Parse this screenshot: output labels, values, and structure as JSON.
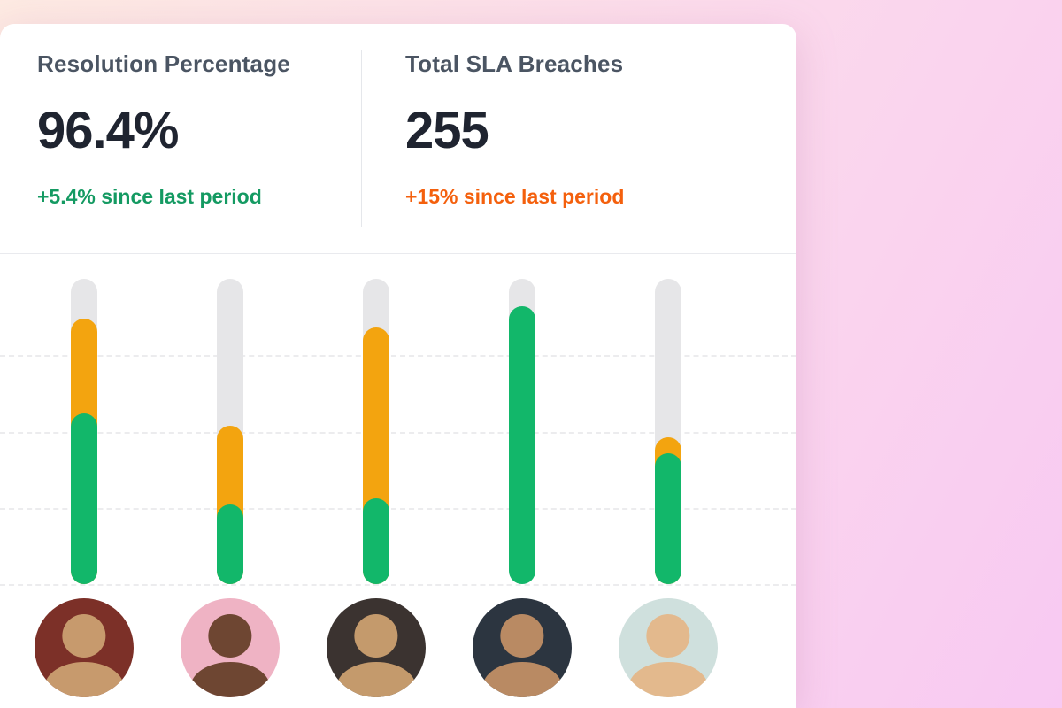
{
  "theme": {
    "background_start": "#fdeae2",
    "background_end": "#f8c9f2",
    "card_bg": "#ffffff",
    "positive_green": "#149a62",
    "alert_orange": "#f4600d"
  },
  "kpis": [
    {
      "label": "Resolution Percentage",
      "value": "96.4%",
      "delta": "+5.4% since last period",
      "delta_color": "#149a62"
    },
    {
      "label": "Total SLA Breaches",
      "value": "255",
      "delta": "+15% since last period",
      "delta_color": "#f4600d"
    }
  ],
  "chart_data": {
    "type": "bar",
    "subtype": "vertical-rounded-stacked-tracks",
    "title": "",
    "xlabel": "",
    "ylabel": "",
    "ylim": [
      0,
      100
    ],
    "grid": "dashed-horizontal",
    "gridlines_pct": [
      25,
      50,
      75,
      100
    ],
    "legend": "none",
    "track_color": "#e6e6e8",
    "categories": [
      "agent-1",
      "agent-2",
      "agent-3",
      "agent-4",
      "agent-5"
    ],
    "series": [
      {
        "name": "green_segment",
        "color": "#12b76a",
        "values": [
          56,
          26,
          28,
          91,
          43
        ]
      },
      {
        "name": "amber_segment",
        "color": "#f3a40f",
        "values": [
          31,
          26,
          56,
          0,
          5
        ]
      }
    ],
    "avatars": [
      {
        "bg": "#7c3028",
        "fg": "#c79a6d"
      },
      {
        "bg": "#efb3c4",
        "fg": "#6e4632"
      },
      {
        "bg": "#3b3330",
        "fg": "#c49a6c"
      },
      {
        "bg": "#2c3540",
        "fg": "#b98a63"
      },
      {
        "bg": "#cfe0dd",
        "fg": "#e3b98d"
      }
    ]
  }
}
